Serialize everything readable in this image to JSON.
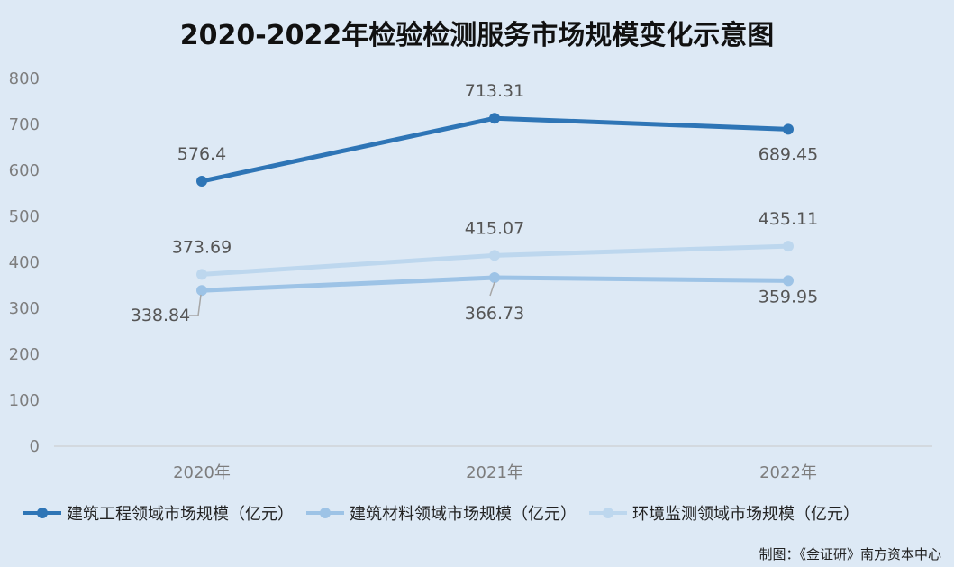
{
  "chart_data": {
    "type": "line",
    "title": "2020-2022年检验检测服务市场规模变化示意图",
    "categories": [
      "2020年",
      "2021年",
      "2022年"
    ],
    "ylim": [
      0,
      800
    ],
    "yticks": [
      "0",
      "100",
      "200",
      "300",
      "400",
      "500",
      "600",
      "700",
      "800"
    ],
    "grid": false,
    "legend_position": "bottom",
    "series": [
      {
        "name": "建筑工程领域市场规模（亿元）",
        "values": [
          576.4,
          713.31,
          689.45
        ],
        "labels": [
          "576.4",
          "713.31",
          "689.45"
        ],
        "color": "#2e75b6"
      },
      {
        "name": "建筑材料领域市场规模（亿元）",
        "values": [
          338.84,
          366.73,
          359.95
        ],
        "labels": [
          "338.84",
          "366.73",
          "359.95"
        ],
        "color": "#9dc3e6"
      },
      {
        "name": "环境监测领域市场规模（亿元）",
        "values": [
          373.69,
          415.07,
          435.11
        ],
        "labels": [
          "373.69",
          "415.07",
          "435.11"
        ],
        "color": "#bdd7ee"
      }
    ]
  },
  "footer": {
    "credit": "制图：《金证研》南方资本中心"
  }
}
